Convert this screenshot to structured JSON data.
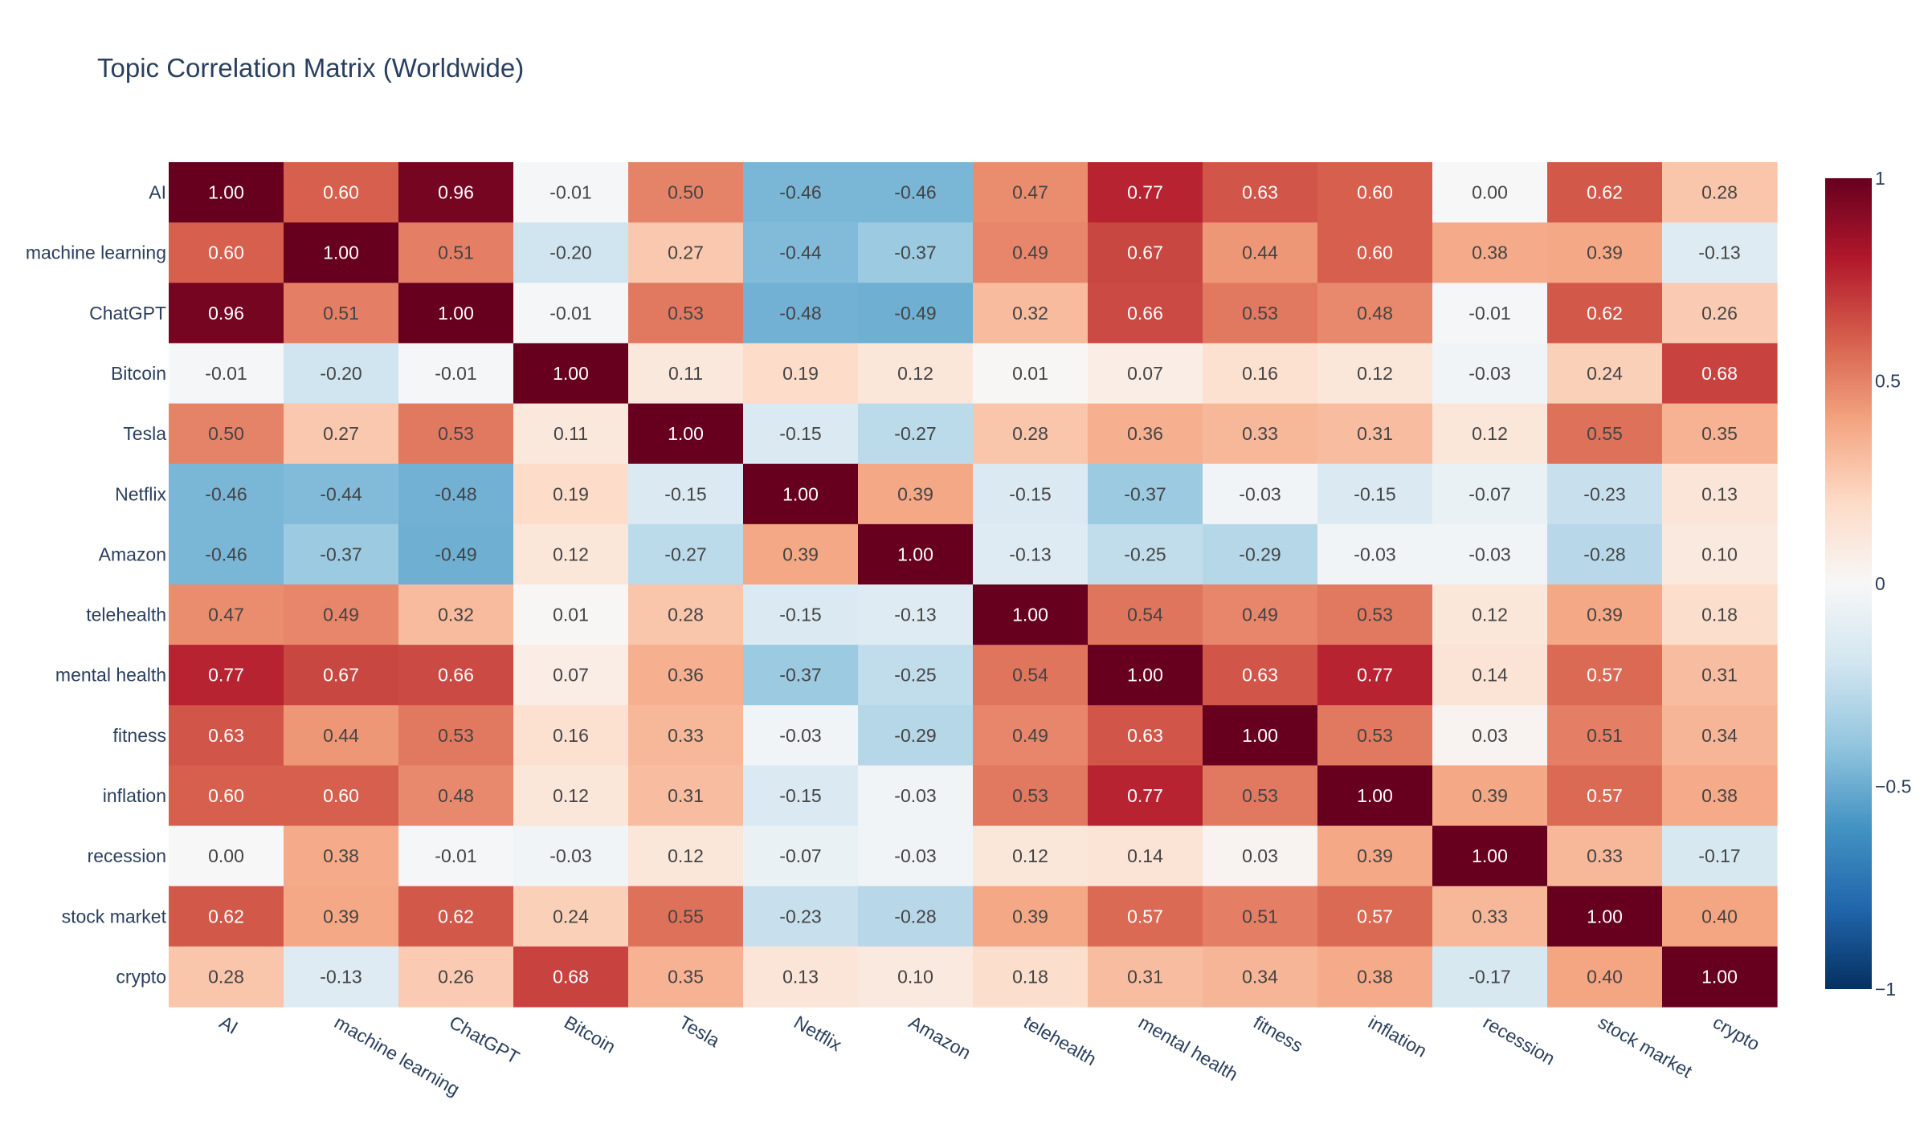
{
  "chart_data": {
    "type": "heatmap",
    "title": "Topic Correlation Matrix (Worldwide)",
    "x": [
      "AI",
      "machine learning",
      "ChatGPT",
      "Bitcoin",
      "Tesla",
      "Netflix",
      "Amazon",
      "telehealth",
      "mental health",
      "fitness",
      "inflation",
      "recession",
      "stock market",
      "crypto"
    ],
    "y": [
      "AI",
      "machine learning",
      "ChatGPT",
      "Bitcoin",
      "Tesla",
      "Netflix",
      "Amazon",
      "telehealth",
      "mental health",
      "fitness",
      "inflation",
      "recession",
      "stock market",
      "crypto"
    ],
    "z": [
      [
        1.0,
        0.6,
        0.96,
        -0.01,
        0.5,
        -0.46,
        -0.46,
        0.47,
        0.77,
        0.63,
        0.6,
        0.0,
        0.62,
        0.28
      ],
      [
        0.6,
        1.0,
        0.51,
        -0.2,
        0.27,
        -0.44,
        -0.37,
        0.49,
        0.67,
        0.44,
        0.6,
        0.38,
        0.39,
        -0.13
      ],
      [
        0.96,
        0.51,
        1.0,
        -0.01,
        0.53,
        -0.48,
        -0.49,
        0.32,
        0.66,
        0.53,
        0.48,
        -0.01,
        0.62,
        0.26
      ],
      [
        -0.01,
        -0.2,
        -0.01,
        1.0,
        0.11,
        0.19,
        0.12,
        0.01,
        0.07,
        0.16,
        0.12,
        -0.03,
        0.24,
        0.68
      ],
      [
        0.5,
        0.27,
        0.53,
        0.11,
        1.0,
        -0.15,
        -0.27,
        0.28,
        0.36,
        0.33,
        0.31,
        0.12,
        0.55,
        0.35
      ],
      [
        -0.46,
        -0.44,
        -0.48,
        0.19,
        -0.15,
        1.0,
        0.39,
        -0.15,
        -0.37,
        -0.03,
        -0.15,
        -0.07,
        -0.23,
        0.13
      ],
      [
        -0.46,
        -0.37,
        -0.49,
        0.12,
        -0.27,
        0.39,
        1.0,
        -0.13,
        -0.25,
        -0.29,
        -0.03,
        -0.03,
        -0.28,
        0.1
      ],
      [
        0.47,
        0.49,
        0.32,
        0.01,
        0.28,
        -0.15,
        -0.13,
        1.0,
        0.54,
        0.49,
        0.53,
        0.12,
        0.39,
        0.18
      ],
      [
        0.77,
        0.67,
        0.66,
        0.07,
        0.36,
        -0.37,
        -0.25,
        0.54,
        1.0,
        0.63,
        0.77,
        0.14,
        0.57,
        0.31
      ],
      [
        0.63,
        0.44,
        0.53,
        0.16,
        0.33,
        -0.03,
        -0.29,
        0.49,
        0.63,
        1.0,
        0.53,
        0.03,
        0.51,
        0.34
      ],
      [
        0.6,
        0.6,
        0.48,
        0.12,
        0.31,
        -0.15,
        -0.03,
        0.53,
        0.77,
        0.53,
        1.0,
        0.39,
        0.57,
        0.38
      ],
      [
        0.0,
        0.38,
        -0.01,
        -0.03,
        0.12,
        -0.07,
        -0.03,
        0.12,
        0.14,
        0.03,
        0.39,
        1.0,
        0.33,
        -0.17
      ],
      [
        0.62,
        0.39,
        0.62,
        0.24,
        0.55,
        -0.23,
        -0.28,
        0.39,
        0.57,
        0.51,
        0.57,
        0.33,
        1.0,
        0.4
      ],
      [
        0.28,
        -0.13,
        0.26,
        0.68,
        0.35,
        0.13,
        0.1,
        0.18,
        0.31,
        0.34,
        0.38,
        -0.17,
        0.4,
        1.0
      ]
    ],
    "zmin": -1,
    "zmax": 1,
    "colorscale": "RdBu_r",
    "colorbar": {
      "ticks": [
        1,
        0.5,
        0,
        -0.5,
        -1
      ],
      "tick_labels": [
        "1",
        "0.5",
        "0",
        "−0.5",
        "−1"
      ]
    },
    "value_format": "2 decimals"
  }
}
